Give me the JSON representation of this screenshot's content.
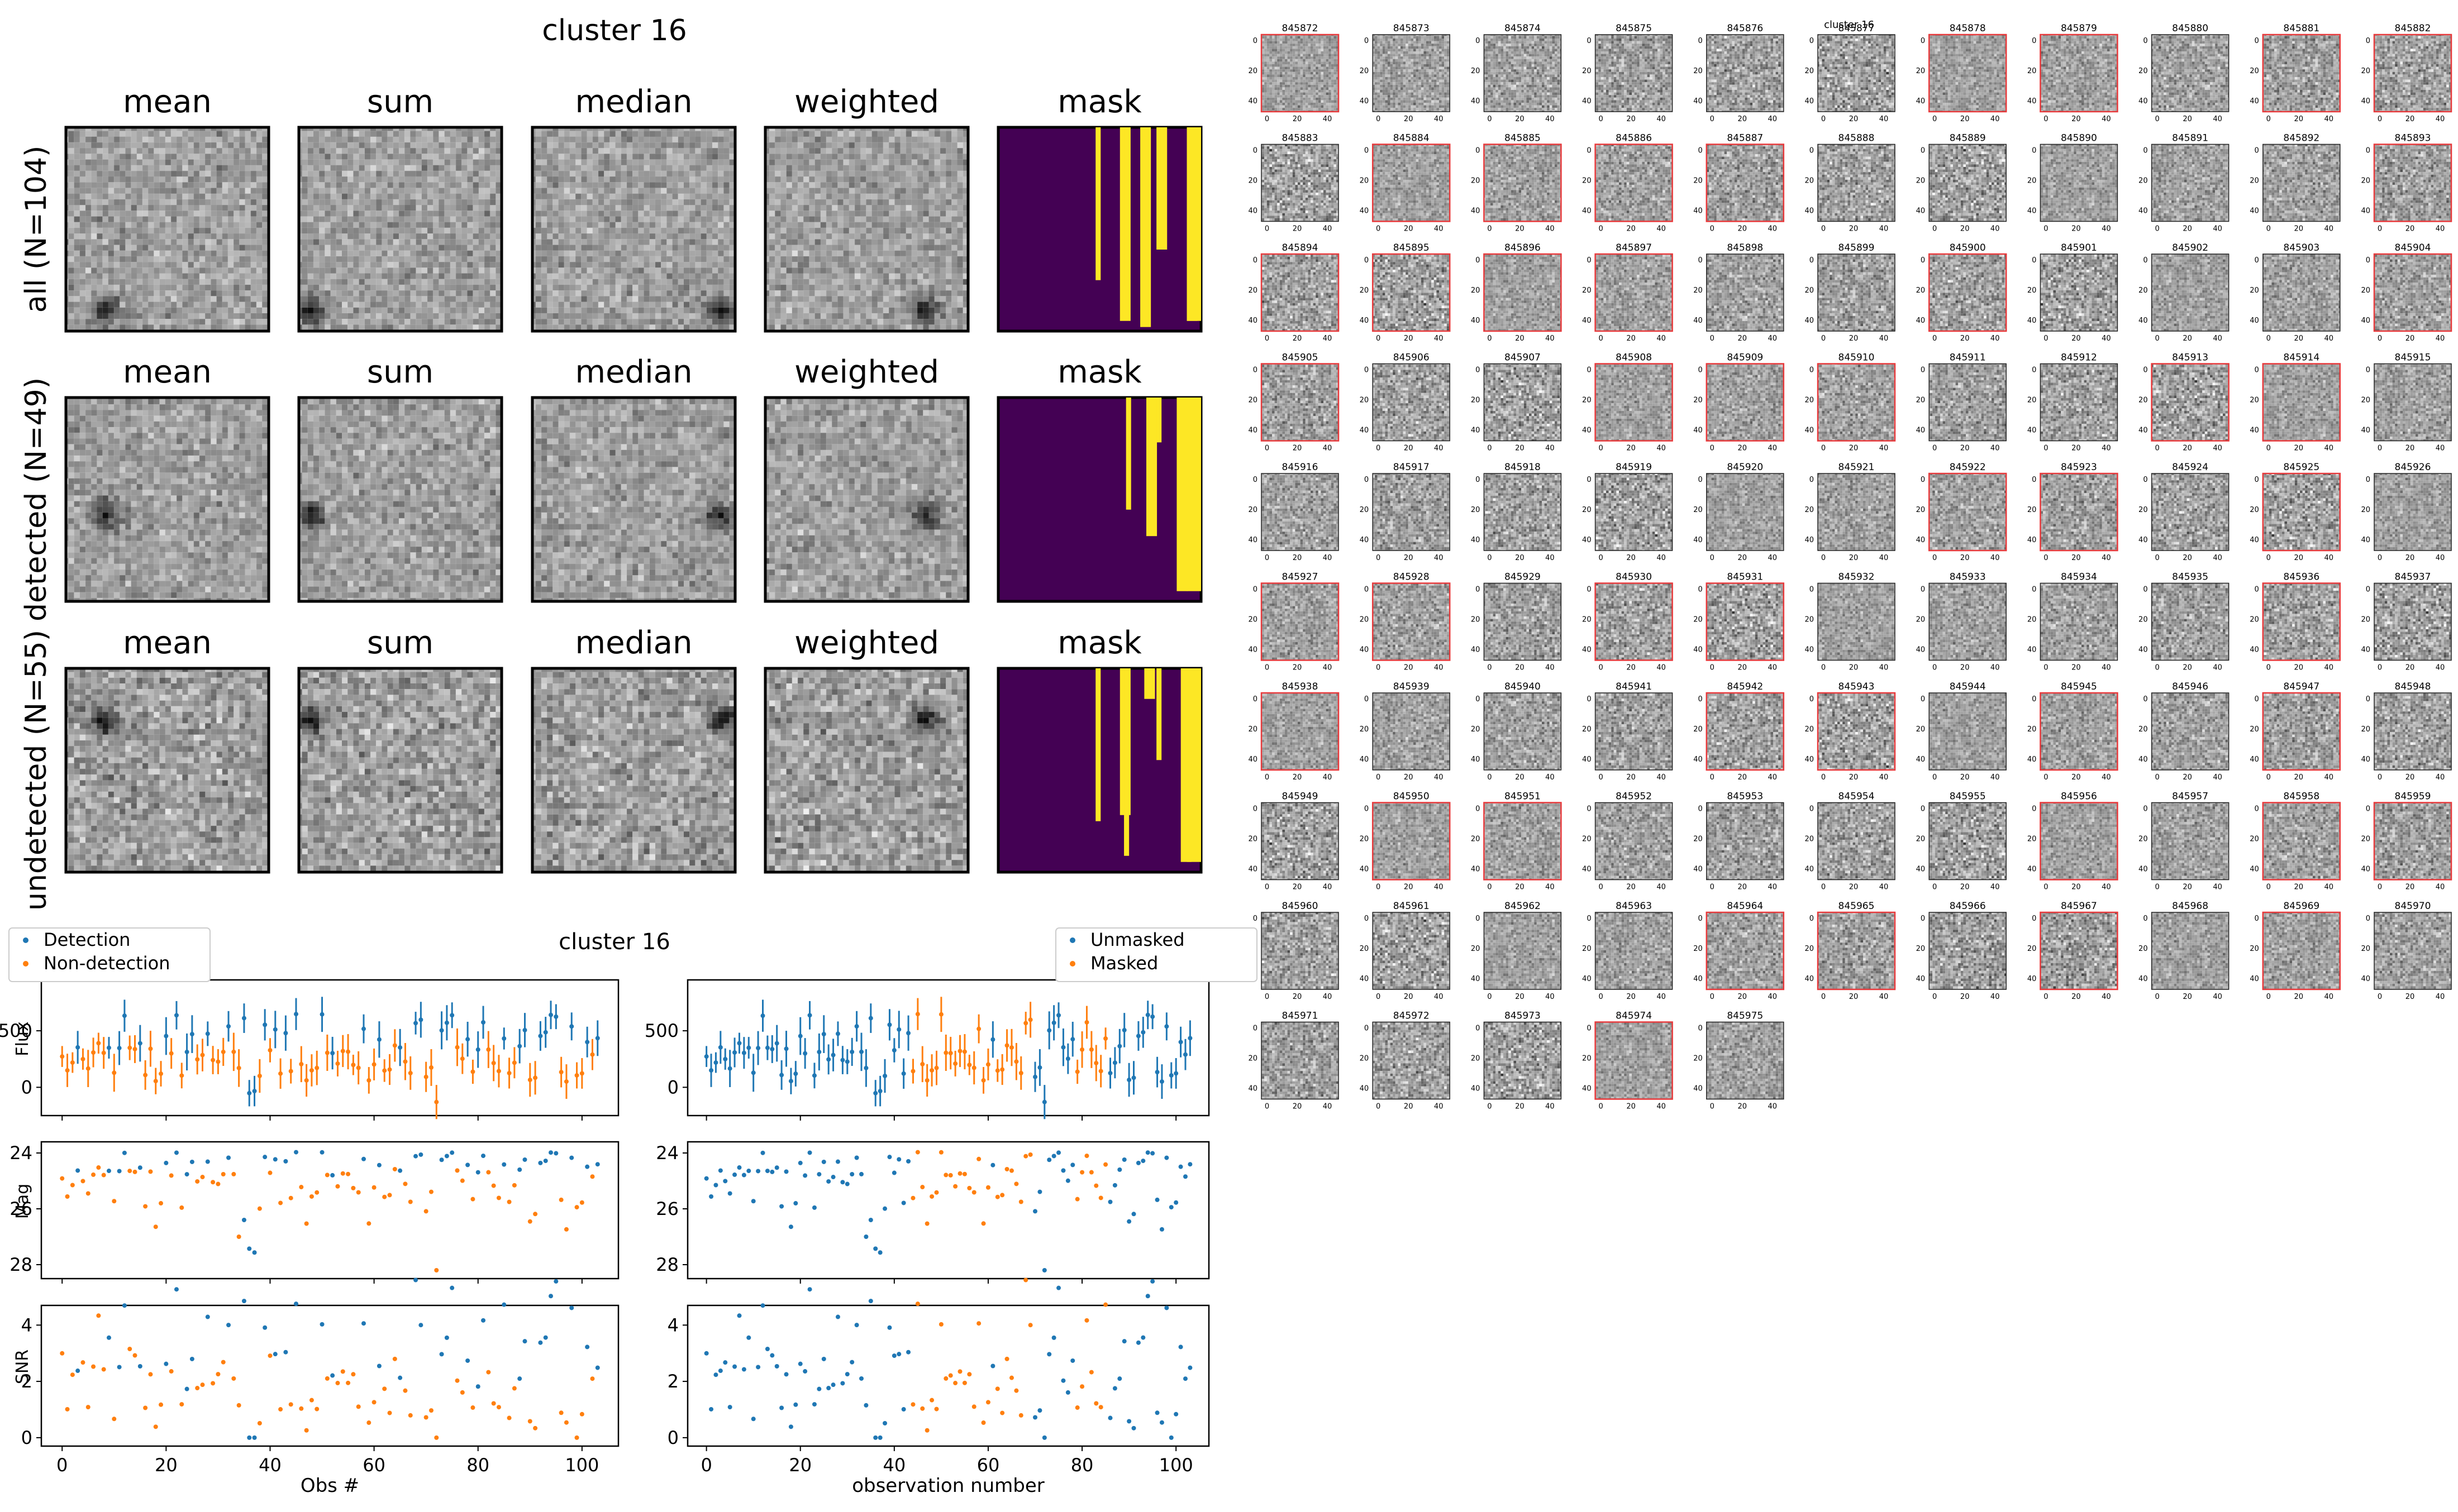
{
  "stack_figure": {
    "title": "cluster 16",
    "column_titles": [
      "mean",
      "sum",
      "median",
      "weighted",
      "mask"
    ],
    "row_labels": [
      "all (N=104)",
      "detected (N=49)",
      "undetected (N=55)"
    ]
  },
  "cutout_grid": {
    "title": "cluster 16",
    "ids": [
      "845872",
      "845873",
      "845874",
      "845875",
      "845876",
      "845877",
      "845878",
      "845879",
      "845880",
      "845881",
      "845882",
      "845883",
      "845884",
      "845885",
      "845886",
      "845887",
      "845888",
      "845889",
      "845890",
      "845891",
      "845892",
      "845893",
      "845894",
      "845895",
      "845896",
      "845897",
      "845898",
      "845899",
      "845900",
      "845901",
      "845902",
      "845903",
      "845904",
      "845905",
      "845906",
      "845907",
      "845908",
      "845909",
      "845910",
      "845911",
      "845912",
      "845913",
      "845914",
      "845915",
      "845916",
      "845917",
      "845918",
      "845919",
      "845920",
      "845921",
      "845922",
      "845923",
      "845924",
      "845925",
      "845926",
      "845927",
      "845928",
      "845929",
      "845930",
      "845931",
      "845932",
      "845933",
      "845934",
      "845935",
      "845936",
      "845937",
      "845938",
      "845939",
      "845940",
      "845941",
      "845942",
      "845943",
      "845944",
      "845945",
      "845946",
      "845947",
      "845948",
      "845949",
      "845950",
      "845951",
      "845952",
      "845953",
      "845954",
      "845955",
      "845956",
      "845957",
      "845958",
      "845959",
      "845960",
      "845961",
      "845962",
      "845963",
      "845964",
      "845965",
      "845966",
      "845967",
      "845968",
      "845969",
      "845970",
      "845971",
      "845972",
      "845973",
      "845974",
      "845975"
    ],
    "ytick_labels": [
      "0",
      "20",
      "40"
    ],
    "xtick_labels": [
      "0",
      "20",
      "40"
    ]
  },
  "chart_data": [
    {
      "type": "scatter",
      "title": "cluster 16",
      "panel": "left",
      "xlabel": "Obs #",
      "xlim": [
        -4,
        107
      ],
      "xticks": [
        0,
        20,
        40,
        60,
        80,
        100
      ],
      "legend": {
        "position": "top-left",
        "entries": [
          "Detection",
          "Non-detection"
        ]
      },
      "series_colors": [
        "#1f77b4",
        "#ff7f0e"
      ],
      "subplots": [
        {
          "ylabel": "Flux",
          "ylim": [
            -250,
            950
          ],
          "yticks": [
            0,
            500
          ],
          "errorbars": true
        },
        {
          "ylabel": "Mag",
          "ylim": [
            28.5,
            23.6
          ],
          "yticks": [
            24,
            26,
            28
          ],
          "inverted": true
        },
        {
          "ylabel": "SNR",
          "ylim": [
            -0.3,
            4.7
          ],
          "yticks": [
            0,
            2,
            4
          ]
        }
      ],
      "n_points": 104,
      "note": "points depict flux / mag / snr per observation; ~49 detection (blue), ~55 non-detection (orange)"
    },
    {
      "type": "scatter",
      "title": "",
      "panel": "right",
      "xlabel": "observation number",
      "xlim": [
        -4,
        107
      ],
      "xticks": [
        0,
        20,
        40,
        60,
        80,
        100
      ],
      "legend": {
        "position": "top-right",
        "entries": [
          "Unmasked",
          "Masked"
        ]
      },
      "series_colors": [
        "#1f77b4",
        "#ff7f0e"
      ],
      "subplots": [
        {
          "ylabel": "",
          "ylim": [
            -250,
            950
          ],
          "yticks": [
            0,
            500
          ],
          "errorbars": true
        },
        {
          "ylabel": "",
          "ylim": [
            28.5,
            23.6
          ],
          "yticks": [
            24,
            26,
            28
          ],
          "inverted": true
        },
        {
          "ylabel": "",
          "ylim": [
            -0.3,
            4.7
          ],
          "yticks": [
            0,
            2,
            4
          ]
        }
      ],
      "n_points": 104,
      "note": "same observations colored by mask state"
    }
  ],
  "colors": {
    "mask_background": "#440154",
    "mask_foreground": "#fde725",
    "cutout_highlight_border": "#e8393b",
    "detection": "#1f77b4",
    "non_detection": "#ff7f0e"
  }
}
